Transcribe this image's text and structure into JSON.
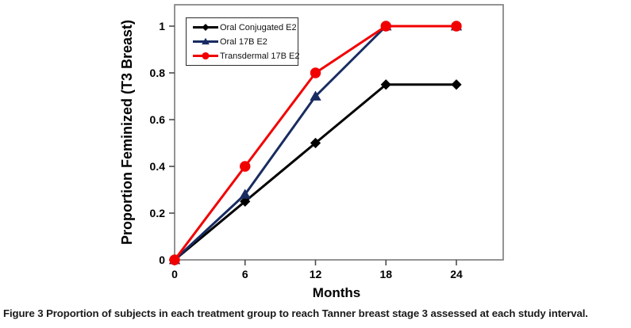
{
  "figure": {
    "caption_label": "Figure 3",
    "caption_text": "Proportion of subjects in each treatment group to reach Tanner breast stage 3 assessed at each study interval."
  },
  "chart_data": {
    "type": "line",
    "title": "",
    "xlabel": "Months",
    "ylabel": "Proportion Feminized (T3 Breast)",
    "x": [
      0,
      6,
      12,
      18,
      24
    ],
    "xticks": [
      "0",
      "6",
      "12",
      "18",
      "24"
    ],
    "yticks": [
      "0",
      "0.2",
      "0.4",
      "0.6",
      "0.8",
      "1"
    ],
    "xlim": [
      0,
      28
    ],
    "ylim": [
      0,
      1.09
    ],
    "grid": false,
    "legend_position": "top-left-inside",
    "series": [
      {
        "name": "Oral Conjugated E2",
        "color": "#000000",
        "marker": "diamond",
        "values": [
          0,
          0.25,
          0.5,
          0.75,
          0.75
        ]
      },
      {
        "name": "Oral 17B E2",
        "color": "#182C61",
        "marker": "triangle",
        "values": [
          0,
          0.28,
          0.7,
          1,
          1
        ]
      },
      {
        "name": "Transdermal 17B E2",
        "color": "#F20000",
        "marker": "circle",
        "values": [
          0,
          0.4,
          0.8,
          1,
          1
        ]
      }
    ],
    "axis_color": "#7a7a7a",
    "tick_color": "#4d4d4d"
  }
}
